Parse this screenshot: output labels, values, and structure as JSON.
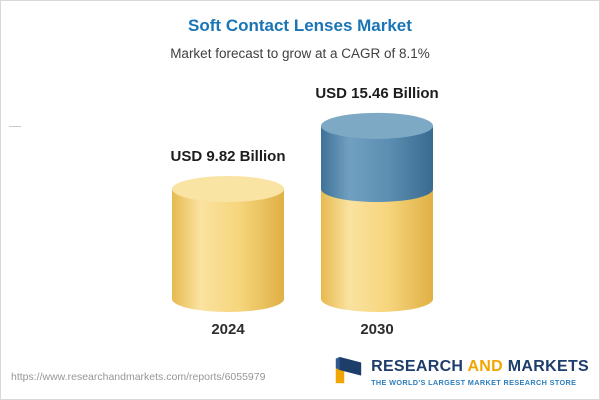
{
  "header": {
    "title": "Soft Contact Lenses Market",
    "subtitle": "Market forecast to grow at a CAGR of 8.1%"
  },
  "chart_data": {
    "type": "bar",
    "bar_style": "3d-cylinder",
    "categories": [
      "2024",
      "2030"
    ],
    "values": [
      9.82,
      15.46
    ],
    "value_labels": [
      "USD 9.82 Billion",
      "USD 15.46 Billion"
    ],
    "unit": "USD Billion",
    "cagr_percent": 8.1,
    "title": "Soft Contact Lenses Market",
    "subtitle": "Market forecast to grow at a CAGR of 8.1%",
    "legend_position": "none",
    "grid": false,
    "ylim": [
      0,
      16
    ],
    "colors": {
      "base_segment": "#f6d57c",
      "growth_segment": "#5c8fb2",
      "base_cap": "#f9e4a4",
      "growth_cap": "#7ea9c5"
    },
    "notes": "2030 cylinder stacks a blue growth segment (15.46 - 9.82) on top of the yellow base equal to the 2024 level"
  },
  "footer": {
    "source_url": "https://www.researchandmarkets.com/reports/6055979",
    "brand": {
      "name_part_research": "RESEARCH",
      "name_part_and": "AND",
      "name_part_markets": "MARKETS",
      "tagline": "THE WORLD'S LARGEST MARKET RESEARCH STORE",
      "color_navy": "#1d3d6b",
      "color_orange": "#f0a500"
    }
  }
}
